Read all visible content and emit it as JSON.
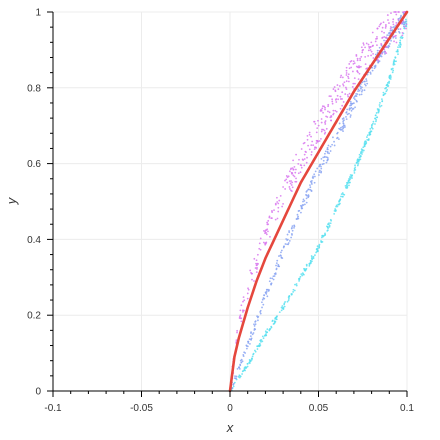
{
  "chart_data": {
    "type": "scatter",
    "xlabel": "x",
    "ylabel": "y",
    "xlim": [
      -0.1,
      0.1
    ],
    "ylim": [
      0,
      1
    ],
    "grid": true,
    "x_ticks": [
      {
        "value": -0.1,
        "label": "-0.1"
      },
      {
        "value": -0.05,
        "label": "-0.05"
      },
      {
        "value": 0,
        "label": "0"
      },
      {
        "value": 0.05,
        "label": "0.05"
      },
      {
        "value": 0.1,
        "label": "0.1"
      }
    ],
    "y_ticks": [
      {
        "value": 0,
        "label": "0"
      },
      {
        "value": 0.2,
        "label": "0.2"
      },
      {
        "value": 0.4,
        "label": "0.4"
      },
      {
        "value": 0.6,
        "label": "0.6"
      },
      {
        "value": 0.8,
        "label": "0.8"
      },
      {
        "value": 1,
        "label": "1"
      }
    ],
    "series": [
      {
        "type": "scatter",
        "color": "#5be0f0",
        "x": [
          0,
          0.01,
          0.02,
          0.03,
          0.04,
          0.05,
          0.06,
          0.07,
          0.08,
          0.09,
          0.1
        ],
        "y": [
          0,
          0.07,
          0.15,
          0.22,
          0.3,
          0.38,
          0.48,
          0.58,
          0.69,
          0.82,
          0.98
        ]
      },
      {
        "type": "scatter",
        "color": "#8aa4f2",
        "x": [
          0,
          0.01,
          0.02,
          0.03,
          0.04,
          0.05,
          0.06,
          0.07,
          0.08,
          0.09,
          0.1
        ],
        "y": [
          0,
          0.12,
          0.25,
          0.37,
          0.48,
          0.58,
          0.67,
          0.76,
          0.85,
          0.93,
          0.99
        ]
      },
      {
        "type": "scatter",
        "color": "#d877ef",
        "x": [
          0,
          0.005,
          0.01,
          0.015,
          0.02,
          0.03,
          0.04,
          0.05,
          0.06,
          0.07,
          0.08,
          0.09,
          0.1
        ],
        "y": [
          0,
          0.18,
          0.27,
          0.34,
          0.41,
          0.52,
          0.61,
          0.69,
          0.77,
          0.84,
          0.9,
          0.95,
          1.0
        ]
      },
      {
        "type": "line",
        "color": "#e5473d",
        "x": [
          0,
          0.0025,
          0.005,
          0.01,
          0.015,
          0.02,
          0.03,
          0.04,
          0.05,
          0.06,
          0.07,
          0.08,
          0.09,
          0.1
        ],
        "y": [
          0,
          0.09,
          0.14,
          0.22,
          0.29,
          0.35,
          0.45,
          0.55,
          0.63,
          0.71,
          0.79,
          0.86,
          0.93,
          1.0
        ]
      }
    ]
  }
}
